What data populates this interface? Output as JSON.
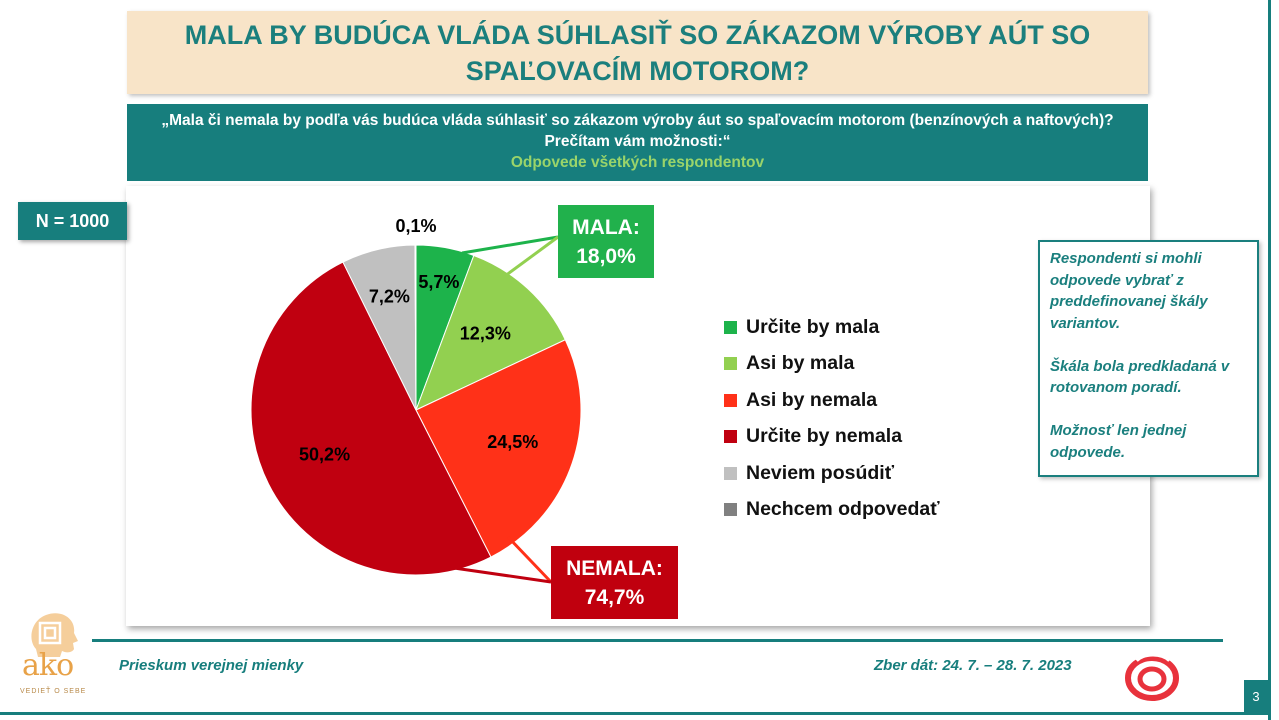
{
  "colors": {
    "teal": "#177e7d",
    "title_bg": "#f8e4c8",
    "title_text": "#1b7f7d",
    "green_label": "#9ad46a",
    "mala_badge": "#21b14c",
    "nemala_badge": "#c0000e",
    "note_text": "#1a7f7e"
  },
  "header": {
    "title": "MALA BY BUDÚCA VLÁDA SÚHLASIŤ SO ZÁKAZOM VÝROBY AÚT SO SPAĽOVACÍM MOTOROM?",
    "question_line1": "„Mala či nemala by podľa vás budúca vláda súhlasiť so zákazom výroby áut so spaľovacím motorom (benzínových a naftových)?",
    "question_line2": "Prečítam vám možnosti:“",
    "question_line3": "Odpovede všetkých respondentov"
  },
  "sample_badge": "N = 1000",
  "group_labels": {
    "mala_title": "MALA:",
    "mala_value": "18,0%",
    "nemala_title": "NEMALA:",
    "nemala_value": "74,7%"
  },
  "chart_data": {
    "type": "pie",
    "title": "",
    "slices": [
      {
        "name": "Určite by mala",
        "value": 5.7,
        "label": "5,7%",
        "color": "#1db34b"
      },
      {
        "name": "Asi by mala",
        "value": 12.3,
        "label": "12,3%",
        "color": "#92d050"
      },
      {
        "name": "Asi by nemala",
        "value": 24.5,
        "label": "24,5%",
        "color": "#ff3118"
      },
      {
        "name": "Určite by nemala",
        "value": 50.2,
        "label": "50,2%",
        "color": "#c00010"
      },
      {
        "name": "Neviem posúdiť",
        "value": 7.2,
        "label": "7,2%",
        "color": "#c0c0c0"
      },
      {
        "name": "Nechcem odpovedať",
        "value": 0.1,
        "label": "0,1%",
        "color": "#808080"
      }
    ],
    "legend_position": "right"
  },
  "note": {
    "p1": "Respondenti si mohli odpovede vybrať z preddefinovanej škály variantov.",
    "p2": "Škála bola predkladaná v rotovanom poradí.",
    "p3": "Možnosť len jednej odpovede."
  },
  "footer": {
    "left": "Prieskum verejnej mienky",
    "right": "Zber dát: 24. 7. – 28. 7. 2023",
    "page_number": "3"
  },
  "logo": {
    "word": "ako",
    "tagline": "VEDIEŤ O SEBE"
  }
}
